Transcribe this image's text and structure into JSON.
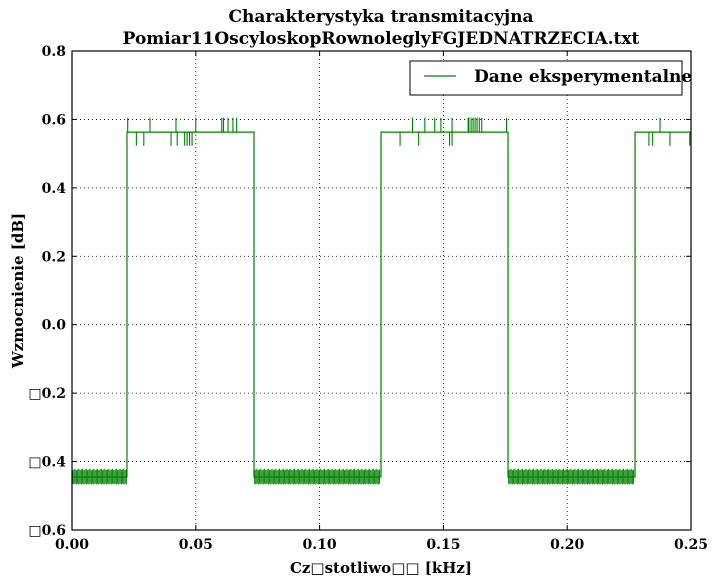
{
  "chart_data": {
    "type": "line",
    "title": "Charakterystyka transmitacyjna",
    "subtitle": "Pomiar11OscyloskopRownoleglyFGJEDNATRZECIA.txt",
    "xlabel": "Cz□stotliwo□□ [kHz]",
    "ylabel": "Wzmocnienie [dB]",
    "xlim": [
      0.0,
      0.25
    ],
    "ylim": [
      -0.6,
      0.8
    ],
    "x_ticks": [
      0.0,
      0.05,
      0.1,
      0.15,
      0.2,
      0.25
    ],
    "x_tick_labels": [
      "0.00",
      "0.05",
      "0.10",
      "0.15",
      "0.20",
      "0.25"
    ],
    "y_ticks": [
      -0.6,
      -0.4,
      -0.2,
      0.0,
      0.2,
      0.4,
      0.6,
      0.8
    ],
    "y_tick_labels": [
      "□0.6",
      "□0.4",
      "□0.2",
      "0.0",
      "0.2",
      "0.4",
      "0.6",
      "0.8"
    ],
    "grid": true,
    "legend_position": "top-right",
    "series": [
      {
        "name": "Dane eksperymentalne",
        "color": "#008000",
        "high_level": 0.563,
        "low_level": -0.445,
        "high_spike_max": 0.605,
        "high_spike_min": 0.523,
        "low_band_max": -0.425,
        "low_band_min": -0.465,
        "segments": [
          {
            "state": "low",
            "x_start": 0.0,
            "x_end": 0.0222
          },
          {
            "state": "high",
            "x_start": 0.0222,
            "x_end": 0.0735
          },
          {
            "state": "low",
            "x_start": 0.0735,
            "x_end": 0.1248
          },
          {
            "state": "high",
            "x_start": 0.1248,
            "x_end": 0.1761
          },
          {
            "state": "low",
            "x_start": 0.1761,
            "x_end": 0.2274
          },
          {
            "state": "high",
            "x_start": 0.2274,
            "x_end": 0.25
          }
        ],
        "high_spikes_up": [
          0.0225,
          0.0315,
          0.042,
          0.05,
          0.0605,
          0.0612,
          0.063,
          0.065,
          0.0665,
          0.1375,
          0.1425,
          0.1465,
          0.149,
          0.1535,
          0.16,
          0.1603,
          0.1612,
          0.162,
          0.1628,
          0.1636,
          0.1645,
          0.1655,
          0.1755,
          0.2375
        ],
        "high_spikes_down": [
          0.026,
          0.029,
          0.04,
          0.0425,
          0.0455,
          0.0465,
          0.0475,
          0.0485,
          0.1325,
          0.14,
          0.1525,
          0.1535,
          0.233,
          0.2345,
          0.2415,
          0.2495
        ]
      }
    ]
  }
}
